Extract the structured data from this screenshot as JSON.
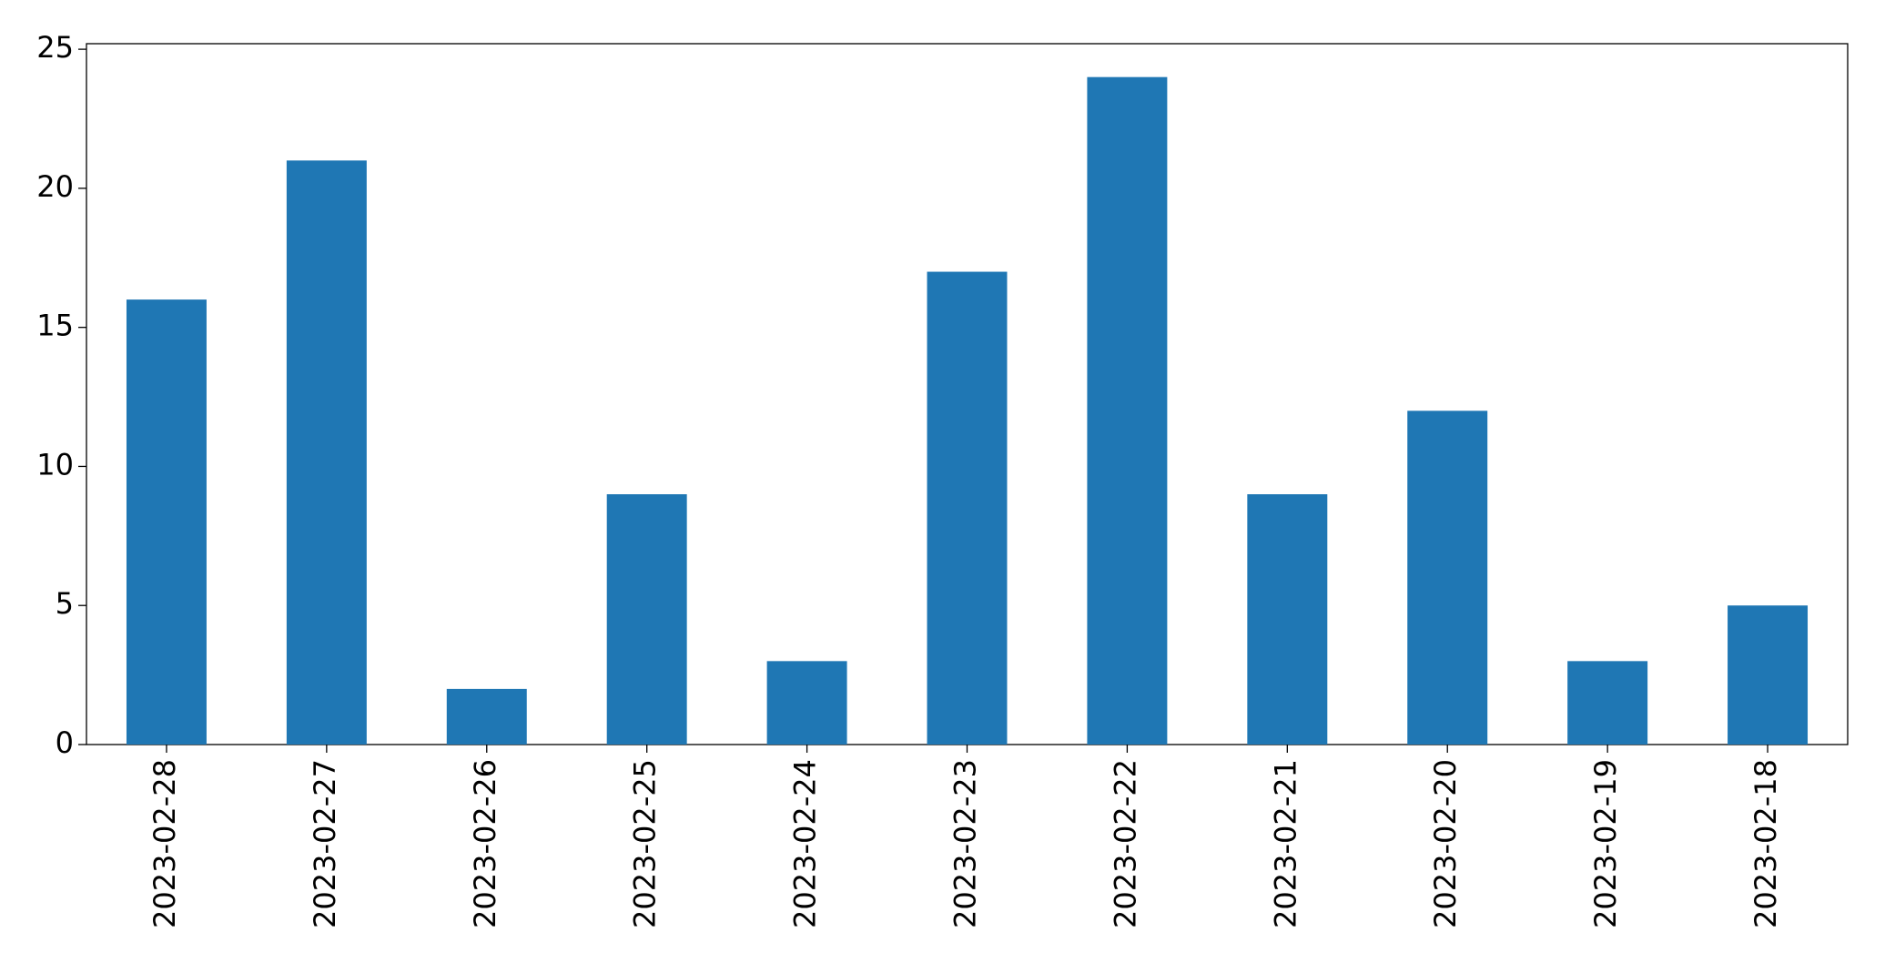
{
  "chart_data": {
    "type": "bar",
    "categories": [
      "2023-02-28",
      "2023-02-27",
      "2023-02-26",
      "2023-02-25",
      "2023-02-24",
      "2023-02-23",
      "2023-02-22",
      "2023-02-21",
      "2023-02-20",
      "2023-02-19",
      "2023-02-18"
    ],
    "values": [
      16,
      21,
      2,
      9,
      3,
      17,
      24,
      9,
      12,
      3,
      5
    ],
    "color": "#1f77b4",
    "ylim": [
      0,
      25.2
    ],
    "yticks": [
      0,
      5,
      10,
      15,
      20,
      25
    ],
    "grid": false
  }
}
